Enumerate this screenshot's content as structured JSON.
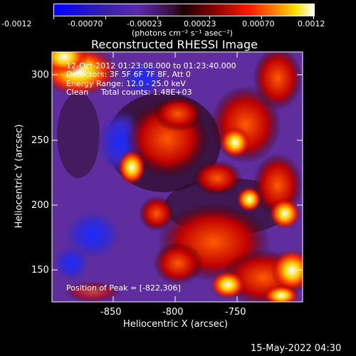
{
  "colorbar": {
    "ticks": [
      "-0.0012",
      "-0.00070",
      "-0.00023",
      "0.00023",
      "0.00070",
      "0.0012"
    ],
    "units_label": "(photons cm⁻² s⁻¹ asec⁻²)"
  },
  "plot": {
    "title": "Reconstructed RHESSI Image",
    "xlabel": "Heliocentric X (arcsec)",
    "ylabel": "Heliocentric Y (arcsec)",
    "xticks": [
      "-850",
      "-800",
      "-750"
    ],
    "yticks": [
      "300",
      "250",
      "200",
      "150"
    ]
  },
  "overlay": {
    "time_range": "12-Oct-2012 01:23:08.000 to 01:23:40.000",
    "detectors": "Detectors: 3F 5F 6F 7F 8F, Att 0",
    "energy_range": "Energy Range: 12.0 - 25.0 keV",
    "clean_counts": "Clean     Total counts: 1.48E+03",
    "peak_position": "Position of Peak = [-822,306]"
  },
  "footer": {
    "timestamp": "15-May-2022 04:30"
  },
  "colors": {
    "background": "#000000",
    "colormap": [
      "#0000ff",
      "#5a1aa0",
      "#6b2fb0",
      "#2a0018",
      "#8b0000",
      "#ff0000",
      "#ff8c00",
      "#ffff66",
      "#ffffff"
    ]
  }
}
